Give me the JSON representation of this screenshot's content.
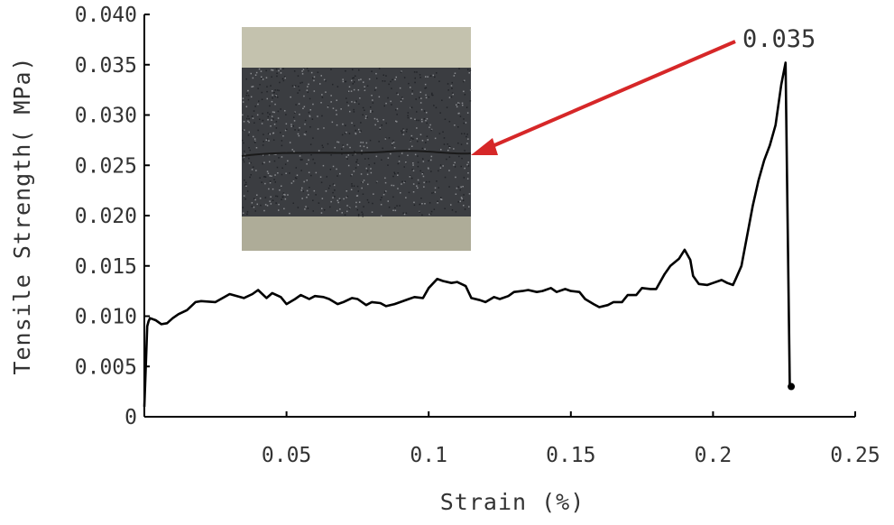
{
  "chart_data": {
    "type": "line",
    "title": "",
    "xlabel": "Strain (%)",
    "ylabel": "Tensile Strength( MPa)",
    "xlim": [
      0,
      0.25
    ],
    "ylim": [
      0,
      0.04
    ],
    "grid": false,
    "x_ticks": [
      {
        "value": 0.05,
        "label": "0.05"
      },
      {
        "value": 0.1,
        "label": "0.1"
      },
      {
        "value": 0.15,
        "label": "0.15"
      },
      {
        "value": 0.2,
        "label": "0.2"
      },
      {
        "value": 0.25,
        "label": "0.25"
      }
    ],
    "y_ticks": [
      {
        "value": 0,
        "label": "0"
      },
      {
        "value": 0.005,
        "label": "0.005"
      },
      {
        "value": 0.01,
        "label": "0.010"
      },
      {
        "value": 0.015,
        "label": "0.015"
      },
      {
        "value": 0.02,
        "label": "0.020"
      },
      {
        "value": 0.025,
        "label": "0.025"
      },
      {
        "value": 0.03,
        "label": "0.030"
      },
      {
        "value": 0.035,
        "label": "0.035"
      },
      {
        "value": 0.04,
        "label": "0.040"
      }
    ],
    "series": [
      {
        "color": "#000000",
        "x": [
          0.0,
          0.0005,
          0.001,
          0.0015,
          0.002,
          0.004,
          0.006,
          0.008,
          0.01,
          0.012,
          0.015,
          0.018,
          0.02,
          0.025,
          0.03,
          0.035,
          0.038,
          0.04,
          0.043,
          0.045,
          0.048,
          0.05,
          0.053,
          0.055,
          0.058,
          0.06,
          0.063,
          0.065,
          0.068,
          0.07,
          0.073,
          0.075,
          0.078,
          0.08,
          0.083,
          0.085,
          0.088,
          0.09,
          0.093,
          0.095,
          0.098,
          0.1,
          0.103,
          0.105,
          0.108,
          0.11,
          0.113,
          0.115,
          0.118,
          0.12,
          0.123,
          0.125,
          0.128,
          0.13,
          0.133,
          0.135,
          0.138,
          0.14,
          0.143,
          0.145,
          0.148,
          0.15,
          0.153,
          0.155,
          0.158,
          0.16,
          0.163,
          0.165,
          0.168,
          0.17,
          0.173,
          0.175,
          0.178,
          0.18,
          0.183,
          0.185,
          0.188,
          0.19,
          0.192,
          0.193,
          0.195,
          0.198,
          0.2,
          0.203,
          0.205,
          0.207,
          0.208,
          0.21,
          0.212,
          0.214,
          0.216,
          0.218,
          0.22,
          0.222,
          0.224,
          0.2255,
          0.226,
          0.227,
          0.2275
        ],
        "y": [
          0.001,
          0.005,
          0.009,
          0.0095,
          0.0098,
          0.0096,
          0.0092,
          0.0093,
          0.0098,
          0.0102,
          0.0106,
          0.0114,
          0.0115,
          0.0114,
          0.0122,
          0.0118,
          0.0122,
          0.0126,
          0.0118,
          0.0123,
          0.0119,
          0.0112,
          0.0117,
          0.0121,
          0.0117,
          0.012,
          0.0119,
          0.0117,
          0.0112,
          0.0114,
          0.0118,
          0.0117,
          0.0111,
          0.0114,
          0.0113,
          0.011,
          0.0112,
          0.0114,
          0.0117,
          0.0119,
          0.0118,
          0.0128,
          0.0137,
          0.0135,
          0.0133,
          0.0134,
          0.013,
          0.0118,
          0.0116,
          0.0114,
          0.0119,
          0.0117,
          0.012,
          0.0124,
          0.0125,
          0.0126,
          0.0124,
          0.0125,
          0.0128,
          0.0124,
          0.0127,
          0.0125,
          0.0124,
          0.0117,
          0.0112,
          0.0109,
          0.0111,
          0.0114,
          0.0114,
          0.0121,
          0.0121,
          0.0128,
          0.0127,
          0.0127,
          0.0142,
          0.015,
          0.0157,
          0.0166,
          0.0156,
          0.014,
          0.0132,
          0.0131,
          0.0133,
          0.0136,
          0.0133,
          0.0131,
          0.0137,
          0.015,
          0.018,
          0.021,
          0.0235,
          0.0255,
          0.027,
          0.029,
          0.033,
          0.0352,
          0.024,
          0.003,
          0.003
        ]
      }
    ],
    "annotations": [
      {
        "text": "0.035",
        "x": 0.2255,
        "y": 0.035
      }
    ],
    "inset": {
      "description": "specimen photograph with fracture line",
      "arrow_color": "#d62728"
    }
  }
}
